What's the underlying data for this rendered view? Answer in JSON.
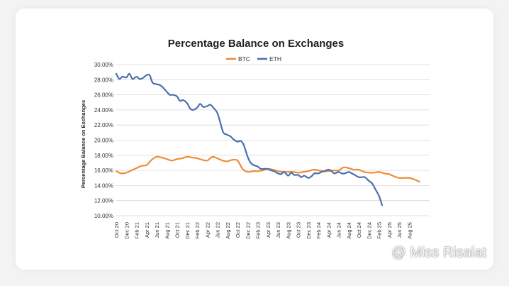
{
  "chart_data": {
    "type": "line",
    "title": "Percentage Balance on Exchanges",
    "xlabel": "",
    "ylabel": "Percentage Balance on Exchanges",
    "ylim": [
      10,
      30
    ],
    "yticks": [
      10,
      12,
      14,
      16,
      18,
      20,
      22,
      24,
      26,
      28,
      30
    ],
    "ytick_labels": [
      "10.00%",
      "12.00%",
      "14.00%",
      "16.00%",
      "18.00%",
      "20.00%",
      "22.00%",
      "24.00%",
      "26.00%",
      "28.00%",
      "30.00%"
    ],
    "categories": [
      "Oct 20",
      "Dec 20",
      "Feb 21",
      "Apr 21",
      "Jun 21",
      "Aug 21",
      "Oct 21",
      "Dec 21",
      "Feb 22",
      "Apr 22",
      "Jun 22",
      "Aug 22",
      "Oct 22",
      "Dec 22",
      "Feb 23",
      "Apr 23",
      "Jun 23",
      "Aug 23",
      "Oct 23",
      "Dec 23",
      "Feb 24",
      "Apr 24",
      "Jun 24",
      "Aug 24",
      "Oct 24",
      "Dec 24",
      "Feb 25",
      "Apr 25",
      "Jun 25",
      "Aug 25"
    ],
    "x_range": [
      0,
      31
    ],
    "legend_position": "top-center",
    "series": [
      {
        "name": "BTC",
        "color": "#ee8c35",
        "points": [
          [
            0,
            15.9
          ],
          [
            0.5,
            15.6
          ],
          [
            1,
            15.7
          ],
          [
            1.5,
            16.0
          ],
          [
            2,
            16.3
          ],
          [
            2.5,
            16.6
          ],
          [
            3,
            16.7
          ],
          [
            3.5,
            17.4
          ],
          [
            4,
            17.8
          ],
          [
            4.5,
            17.7
          ],
          [
            5,
            17.5
          ],
          [
            5.5,
            17.3
          ],
          [
            6,
            17.5
          ],
          [
            6.5,
            17.6
          ],
          [
            7,
            17.8
          ],
          [
            7.5,
            17.7
          ],
          [
            8,
            17.6
          ],
          [
            8.5,
            17.4
          ],
          [
            9,
            17.3
          ],
          [
            9.5,
            17.8
          ],
          [
            10,
            17.6
          ],
          [
            10.5,
            17.3
          ],
          [
            11,
            17.2
          ],
          [
            11.5,
            17.4
          ],
          [
            12,
            17.3
          ],
          [
            12.5,
            16.2
          ],
          [
            13,
            15.8
          ],
          [
            13.5,
            15.9
          ],
          [
            14,
            15.9
          ],
          [
            14.5,
            16.0
          ],
          [
            15,
            16.2
          ],
          [
            15.5,
            16.1
          ],
          [
            16,
            15.9
          ],
          [
            16.5,
            15.8
          ],
          [
            17,
            15.8
          ],
          [
            17.5,
            15.8
          ],
          [
            18,
            15.7
          ],
          [
            18.5,
            15.8
          ],
          [
            19,
            15.9
          ],
          [
            19.5,
            16.1
          ],
          [
            20,
            16.0
          ],
          [
            20.5,
            15.9
          ],
          [
            21,
            15.9
          ],
          [
            21.5,
            16.0
          ],
          [
            22,
            16.0
          ],
          [
            22.5,
            16.4
          ],
          [
            23,
            16.3
          ],
          [
            23.5,
            16.1
          ],
          [
            24,
            16.1
          ],
          [
            24.5,
            15.8
          ],
          [
            25,
            15.7
          ],
          [
            25.5,
            15.7
          ],
          [
            26,
            15.8
          ],
          [
            26.5,
            15.6
          ],
          [
            27,
            15.5
          ],
          [
            27.5,
            15.2
          ],
          [
            28,
            15.0
          ],
          [
            28.5,
            15.0
          ],
          [
            29,
            15.0
          ],
          [
            29.5,
            14.8
          ],
          [
            30,
            14.5
          ]
        ]
      },
      {
        "name": "ETH",
        "color": "#4a6fae",
        "points": [
          [
            0,
            28.8
          ],
          [
            0.3,
            28.1
          ],
          [
            0.6,
            28.4
          ],
          [
            1,
            28.3
          ],
          [
            1.3,
            28.8
          ],
          [
            1.6,
            28.1
          ],
          [
            2,
            28.4
          ],
          [
            2.3,
            28.1
          ],
          [
            2.6,
            28.2
          ],
          [
            3,
            28.6
          ],
          [
            3.3,
            28.6
          ],
          [
            3.6,
            27.6
          ],
          [
            4,
            27.4
          ],
          [
            4.3,
            27.3
          ],
          [
            4.6,
            27.0
          ],
          [
            5,
            26.4
          ],
          [
            5.3,
            26.0
          ],
          [
            5.6,
            26.0
          ],
          [
            6,
            25.8
          ],
          [
            6.3,
            25.2
          ],
          [
            6.6,
            25.3
          ],
          [
            7,
            24.9
          ],
          [
            7.3,
            24.2
          ],
          [
            7.6,
            24.0
          ],
          [
            8,
            24.3
          ],
          [
            8.3,
            24.8
          ],
          [
            8.6,
            24.4
          ],
          [
            9,
            24.5
          ],
          [
            9.3,
            24.7
          ],
          [
            9.6,
            24.3
          ],
          [
            10,
            23.6
          ],
          [
            10.3,
            22.3
          ],
          [
            10.6,
            21.0
          ],
          [
            11,
            20.7
          ],
          [
            11.3,
            20.5
          ],
          [
            11.6,
            20.1
          ],
          [
            12,
            19.8
          ],
          [
            12.3,
            19.9
          ],
          [
            12.6,
            19.4
          ],
          [
            13,
            17.8
          ],
          [
            13.3,
            17.0
          ],
          [
            13.6,
            16.7
          ],
          [
            14,
            16.5
          ],
          [
            14.3,
            16.2
          ],
          [
            14.6,
            16.2
          ],
          [
            15,
            16.2
          ],
          [
            15.3,
            16.0
          ],
          [
            15.6,
            15.9
          ],
          [
            16,
            15.6
          ],
          [
            16.3,
            15.5
          ],
          [
            16.6,
            15.8
          ],
          [
            17,
            15.3
          ],
          [
            17.3,
            15.7
          ],
          [
            17.6,
            15.4
          ],
          [
            18,
            15.4
          ],
          [
            18.3,
            15.1
          ],
          [
            18.6,
            15.3
          ],
          [
            19,
            15.0
          ],
          [
            19.3,
            15.2
          ],
          [
            19.6,
            15.6
          ],
          [
            20,
            15.6
          ],
          [
            20.3,
            15.8
          ],
          [
            20.6,
            15.9
          ],
          [
            21,
            16.1
          ],
          [
            21.3,
            15.9
          ],
          [
            21.6,
            15.6
          ],
          [
            22,
            15.8
          ],
          [
            22.3,
            15.6
          ],
          [
            22.6,
            15.6
          ],
          [
            23,
            15.8
          ],
          [
            23.3,
            15.6
          ],
          [
            23.6,
            15.4
          ],
          [
            24,
            15.1
          ],
          [
            24.3,
            15.1
          ],
          [
            24.6,
            15.1
          ],
          [
            25,
            14.6
          ],
          [
            25.3,
            14.3
          ],
          [
            25.6,
            13.6
          ],
          [
            26,
            12.6
          ],
          [
            26.3,
            11.4
          ]
        ]
      }
    ]
  },
  "watermark": {
    "text": "@ Miss Risalat"
  }
}
